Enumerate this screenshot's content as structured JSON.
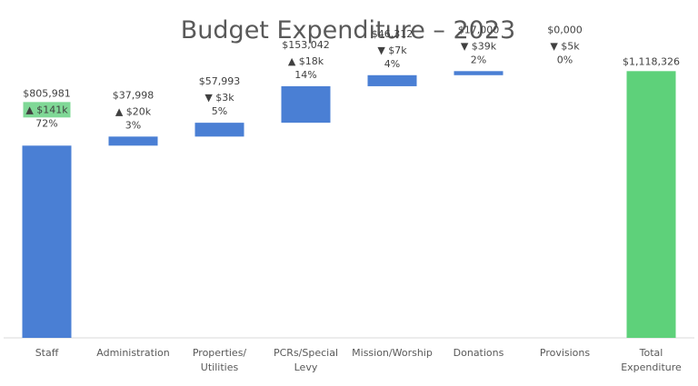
{
  "chart_data": {
    "type": "bar",
    "subtype": "waterfall",
    "title": "Budget Expenditure – 2023",
    "xlabel": "",
    "ylabel": "",
    "ylim": [
      0,
      1150000
    ],
    "grid": false,
    "colors": {
      "bar": "#4a7fd4",
      "total": "#5ed17a",
      "highlight": "#7fd896",
      "axis": "#d9d9d9",
      "text": "#404040",
      "title": "#595959"
    },
    "categories": [
      {
        "lines": [
          "Staff"
        ],
        "value": 805981,
        "value_label": "$805,981",
        "change": "▲ $141k",
        "share": "72%",
        "highlight_change": true
      },
      {
        "lines": [
          "Administration"
        ],
        "value": 37998,
        "value_label": "$37,998",
        "change": "▲ $20k",
        "share": "3%"
      },
      {
        "lines": [
          "Properties/",
          "Utilities"
        ],
        "value": 57993,
        "value_label": "$57,993",
        "change": "▼ $3k",
        "share": "5%"
      },
      {
        "lines": [
          "PCRs/Special",
          "Levy"
        ],
        "value": 153042,
        "value_label": "$153,042",
        "change": "▲ $18k",
        "share": "14%"
      },
      {
        "lines": [
          "Mission/Worship"
        ],
        "value": 46312,
        "value_label": "$46,312",
        "change": "▼ $7k",
        "share": "4%"
      },
      {
        "lines": [
          "Donations"
        ],
        "value": 17000,
        "value_label": "$17,000",
        "change": "▼ $39k",
        "share": "2%"
      },
      {
        "lines": [
          "Provisions"
        ],
        "value": 0,
        "value_label": "$0,000",
        "change": "▼ $5k",
        "share": "0%"
      }
    ],
    "total": {
      "lines": [
        "Total",
        "Expenditure"
      ],
      "value": 1118326,
      "value_label": "$1,118,326"
    }
  }
}
